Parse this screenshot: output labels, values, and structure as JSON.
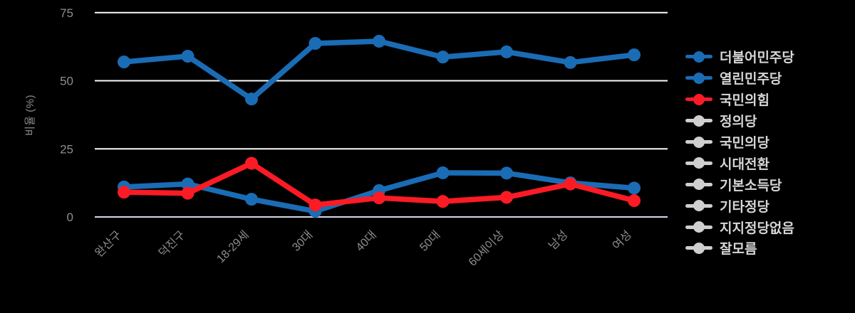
{
  "colors": {
    "background": "#000000",
    "gridline": "#fafafa",
    "zeroline": "#d6d8e8",
    "axis_text": "#8e8e8e",
    "legend_text": "#d6d6d6",
    "series_blue": "#1a6cb5",
    "series_red": "#fa1b25",
    "inactive_gray": "#cfcfcf"
  },
  "chart_data": {
    "type": "line",
    "title": "",
    "xlabel": "",
    "ylabel": "비율 (%)",
    "yticks": [
      0,
      25,
      50,
      75
    ],
    "ylim": [
      0,
      78
    ],
    "grid": true,
    "legend_position": "right",
    "marker_style": "lines+markers",
    "categories": [
      "완산구",
      "덕진구",
      "18-29세",
      "30대",
      "40대",
      "50대",
      "60세이상",
      "남성",
      "여성"
    ],
    "series": [
      {
        "name": "더불어민주당",
        "color": "#1a6cb5",
        "visible": true,
        "values": [
          56.9,
          59.0,
          43.3,
          63.7,
          64.5,
          58.7,
          60.6,
          56.7,
          59.5
        ]
      },
      {
        "name": "열린민주당",
        "color": "#1a6cb5",
        "visible": true,
        "values": [
          11.0,
          12.1,
          6.5,
          2.1,
          9.7,
          16.2,
          16.1,
          12.5,
          10.6
        ]
      },
      {
        "name": "국민의힘",
        "color": "#fa1b25",
        "visible": true,
        "values": [
          9.1,
          8.7,
          19.7,
          4.4,
          7.0,
          5.7,
          7.2,
          12.1,
          6.0
        ]
      },
      {
        "name": "정의당",
        "color": "#cfcfcf",
        "visible": false,
        "values": []
      },
      {
        "name": "국민의당",
        "color": "#cfcfcf",
        "visible": false,
        "values": []
      },
      {
        "name": "시대전환",
        "color": "#cfcfcf",
        "visible": false,
        "values": []
      },
      {
        "name": "기본소득당",
        "color": "#cfcfcf",
        "visible": false,
        "values": []
      },
      {
        "name": "기타정당",
        "color": "#cfcfcf",
        "visible": false,
        "values": []
      },
      {
        "name": "지지정당없음",
        "color": "#cfcfcf",
        "visible": false,
        "values": []
      },
      {
        "name": "잘모름",
        "color": "#cfcfcf",
        "visible": false,
        "values": []
      }
    ]
  }
}
